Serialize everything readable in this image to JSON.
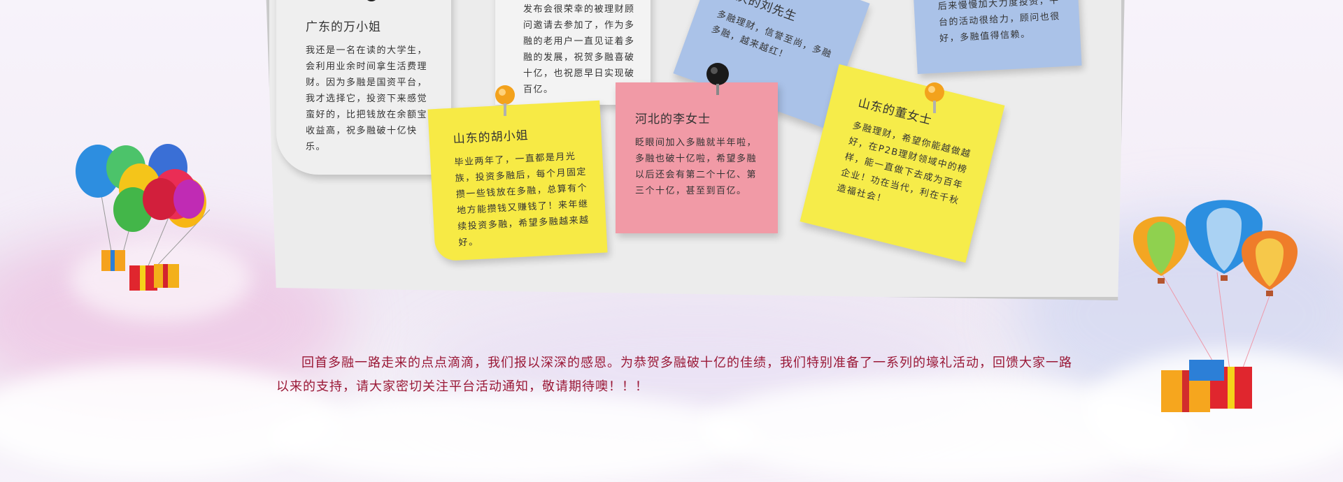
{
  "notes": [
    {
      "title": "广东的万小姐",
      "body": "我还是一名在读的大学生，会利用业余时间拿生活费理财。因为多融是国资平台，我才选择它，投资下来感觉蛮好的，比把钱放在余额宝收益高，祝多融破十亿快乐。",
      "color": "#eeeeee"
    },
    {
      "title": "",
      "body": "发布会很荣幸的被理财顾问邀请去参加了，作为多融的老用户一直见证着多融的发展，祝贺多融喜破十亿，也祝愿早日实现破百亿。",
      "color": "#f3f3f3"
    },
    {
      "title": "重庆的刘先生",
      "body": "多融理财，信誉至尚，多融多融，越来越红！",
      "color": "#aac2e8"
    },
    {
      "title": "",
      "body": "后来慢慢加大力度投资，平台的活动很给力，顾问也很好，多融值得信赖。",
      "color": "#aac2e8"
    },
    {
      "title": "山东的胡小姐",
      "body": "毕业两年了，一直都是月光族，投资多融后，每个月固定攒一些钱放在多融，总算有个地方能攒钱又赚钱了！来年继续投资多融，希望多融越来越好。",
      "color": "#f7ea45"
    },
    {
      "title": "河北的李女士",
      "body": "眨眼间加入多融就半年啦，多融也破十亿啦，希望多融以后还会有第二个十亿、第三个十亿，甚至到百亿。",
      "color": "#f19aa6"
    },
    {
      "title": "山东的董女士",
      "body": "多融理财，希望你能越做越好，在P2B理财领域中的榜样，能一直做下去成为百年企业！功在当代，利在千秋造福社会！",
      "color": "#f6ec4a"
    }
  ],
  "footer": {
    "text": "回首多融一路走来的点点滴滴，我们报以深深的感恩。为恭贺多融破十亿的佳绩，我们特别准备了一系列的壕礼活动，回馈大家一路以来的支持，请大家密切关注平台活动通知，敬请期待噢！！！"
  }
}
